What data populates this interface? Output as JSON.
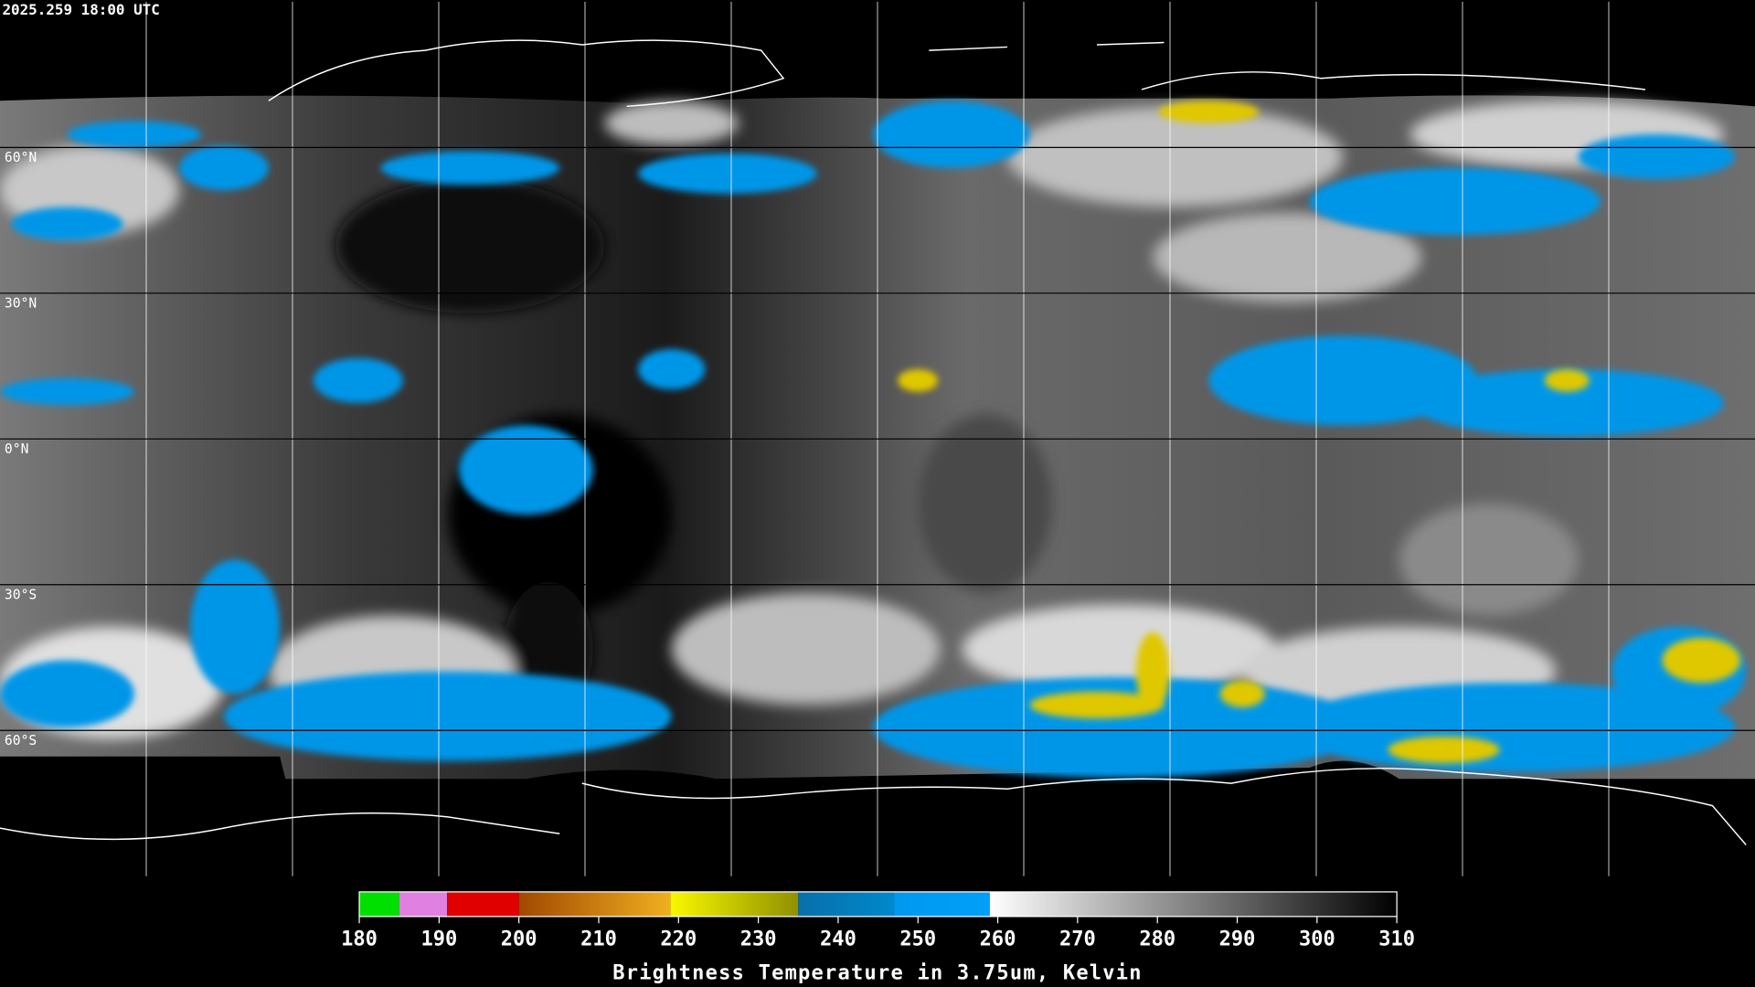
{
  "header": {
    "timestamp": "2025.259 18:00 UTC"
  },
  "map": {
    "lon_lines": [
      -150,
      -120,
      -90,
      -60,
      -30,
      0,
      30,
      60,
      90,
      120,
      150
    ],
    "lat_lines": [
      {
        "value": 60,
        "label": "60°N"
      },
      {
        "value": 30,
        "label": "30°N"
      },
      {
        "value": 0,
        "label": "0°N"
      },
      {
        "value": -30,
        "label": "30°S"
      },
      {
        "value": -60,
        "label": "60°S"
      }
    ]
  },
  "colorbar": {
    "title": "Brightness Temperature in 3.75um, Kelvin",
    "lim": [
      180,
      310
    ],
    "ticks": [
      180,
      190,
      200,
      210,
      220,
      230,
      240,
      250,
      260,
      270,
      280,
      290,
      300,
      310
    ],
    "segments": [
      {
        "from": 180,
        "to": 185,
        "color_start": "#00e000",
        "color_end": "#00e000"
      },
      {
        "from": 185,
        "to": 191,
        "color_start": "#e080e0",
        "color_end": "#e080e0"
      },
      {
        "from": 191,
        "to": 200,
        "color_start": "#e00000",
        "color_end": "#e00000"
      },
      {
        "from": 200,
        "to": 219,
        "color_start": "#a04800",
        "color_end": "#f0b020"
      },
      {
        "from": 219,
        "to": 235,
        "color_start": "#f8f800",
        "color_end": "#909000"
      },
      {
        "from": 235,
        "to": 247,
        "color_start": "#0870a8",
        "color_end": "#0088cc"
      },
      {
        "from": 247,
        "to": 259,
        "color_start": "#0098f0",
        "color_end": "#00a0f8"
      },
      {
        "from": 259,
        "to": 310,
        "color_start": "#ffffff",
        "color_end": "#000000"
      }
    ]
  }
}
